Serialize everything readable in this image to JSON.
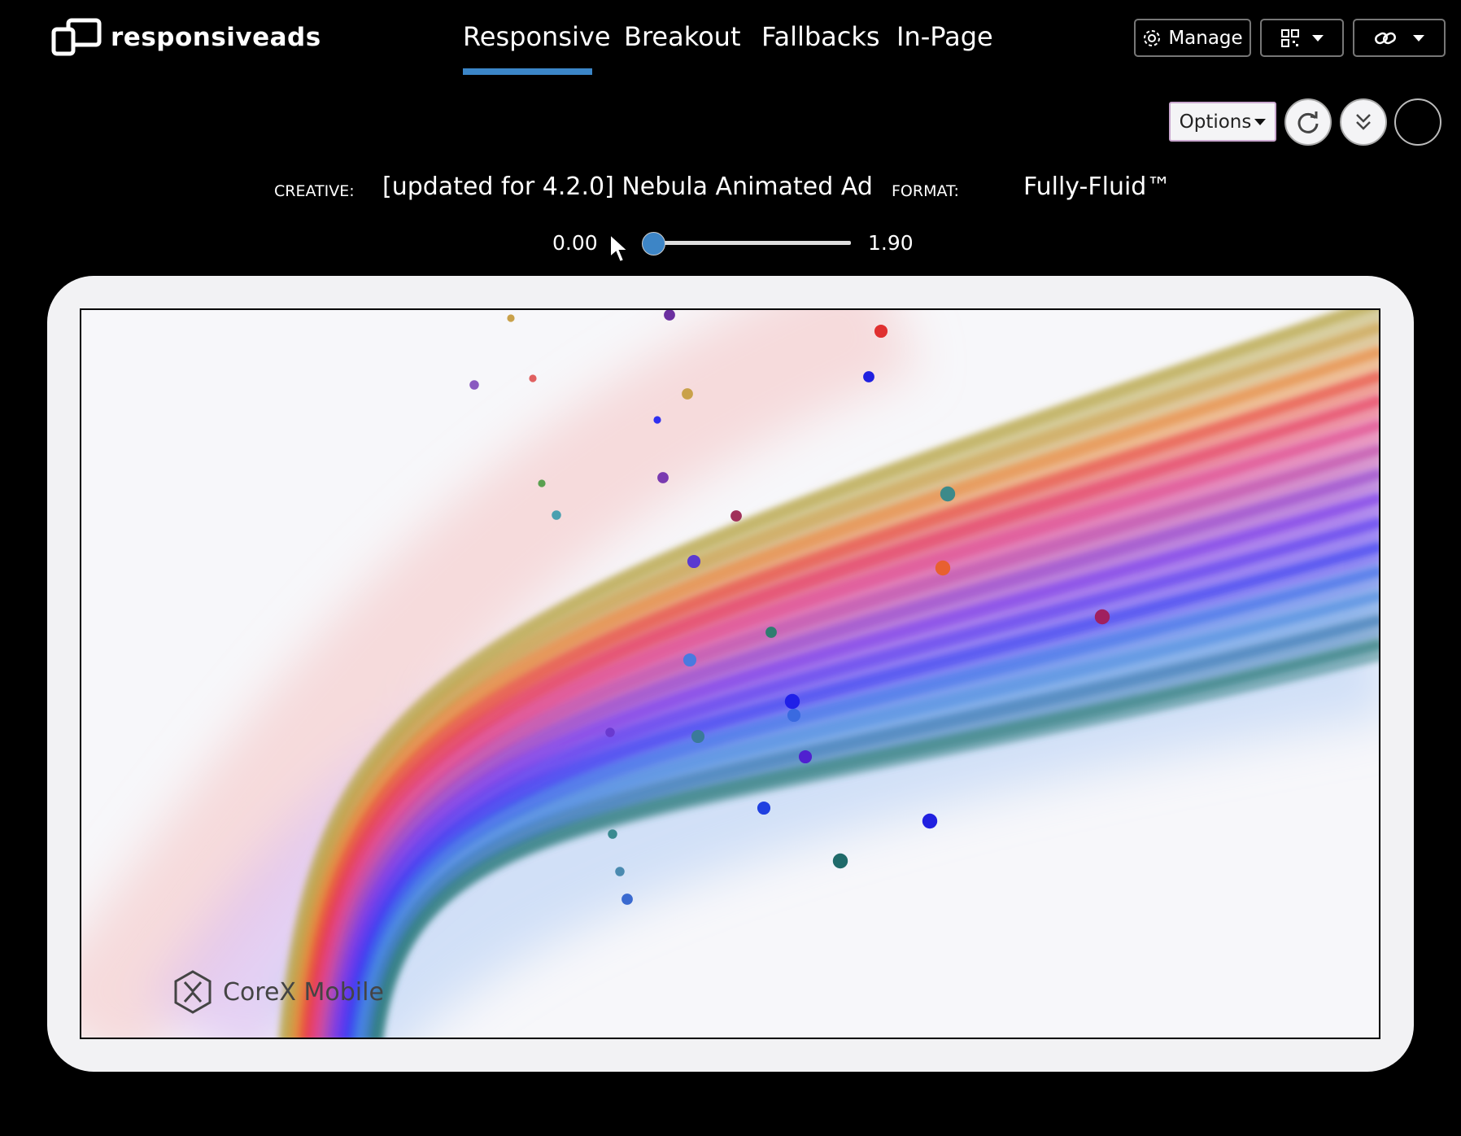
{
  "header": {
    "brand": "responsiveads",
    "nav": [
      {
        "label": "Responsive",
        "active": true
      },
      {
        "label": "Breakout",
        "active": false
      },
      {
        "label": "Fallbacks",
        "active": false
      },
      {
        "label": "In-Page",
        "active": false
      }
    ],
    "manage_label": "Manage",
    "qr_icon": "qr-code-icon",
    "link_icon": "link-icon",
    "accent": "#3b86c8"
  },
  "toolbar": {
    "options_label": "Options",
    "reload_icon": "reload-icon",
    "collapse_icon": "double-chevron-down-icon"
  },
  "info": {
    "creative_label": "CREATIVE:",
    "creative_value": "[updated for 4.2.0] Nebula Animated Ad",
    "format_label": "FORMAT:",
    "format_value": "Fully-Fluid™"
  },
  "slider": {
    "min_label": "0.00",
    "max_label": "1.90",
    "value": 0.0
  },
  "ad": {
    "brand": "CoreX Mobile"
  }
}
